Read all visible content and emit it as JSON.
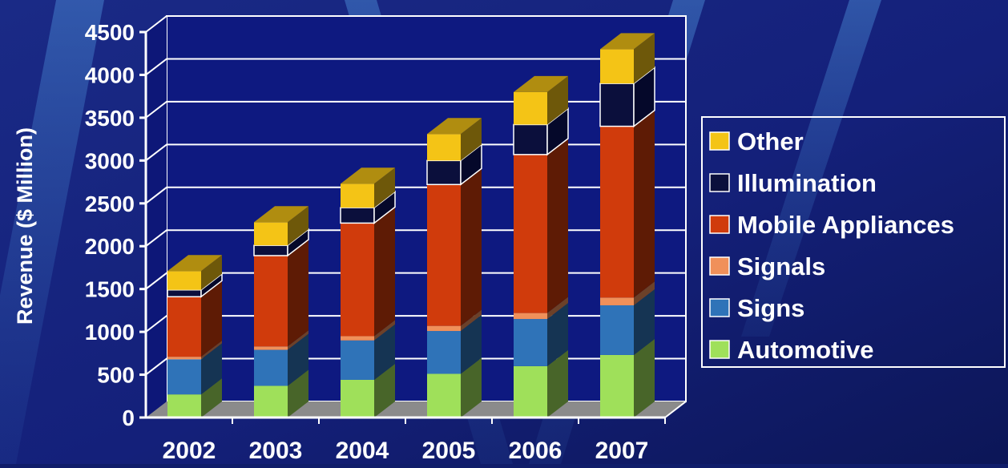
{
  "chart_data": {
    "type": "bar",
    "stacked": true,
    "three_d": true,
    "categories": [
      "2002",
      "2003",
      "2004",
      "2005",
      "2006",
      "2007"
    ],
    "ylabel": "Revenue ($ Million)",
    "ylim": [
      0,
      4500
    ],
    "yticks": [
      "0",
      "500",
      "1000",
      "1500",
      "2000",
      "2500",
      "3000",
      "3500",
      "4000",
      "4500"
    ],
    "grid": true,
    "legend_position": "right",
    "series": [
      {
        "name": "Automotive",
        "color": "#9fe05a",
        "values": [
          270,
          370,
          440,
          510,
          600,
          730
        ]
      },
      {
        "name": "Signs",
        "color": "#2f73b8",
        "values": [
          410,
          420,
          460,
          500,
          550,
          580
        ]
      },
      {
        "name": "Signals",
        "color": "#f0905a",
        "values": [
          30,
          40,
          50,
          60,
          70,
          90
        ]
      },
      {
        "name": "Mobile Appliances",
        "color": "#d03b0c",
        "values": [
          700,
          1060,
          1320,
          1650,
          1850,
          2000
        ]
      },
      {
        "name": "Illumination",
        "color": "#0b0f3c",
        "values": [
          80,
          120,
          180,
          280,
          350,
          500
        ]
      },
      {
        "name": "Other",
        "color": "#f4c416",
        "values": [
          220,
          270,
          280,
          310,
          380,
          400
        ]
      }
    ]
  },
  "legend": {
    "items": [
      "Other",
      "Illumination",
      "Mobile Appliances",
      "Signals",
      "Signs",
      "Automotive"
    ],
    "colors": [
      "#f4c416",
      "#0b0f3c",
      "#d03b0c",
      "#f0905a",
      "#2f73b8",
      "#9fe05a"
    ]
  }
}
